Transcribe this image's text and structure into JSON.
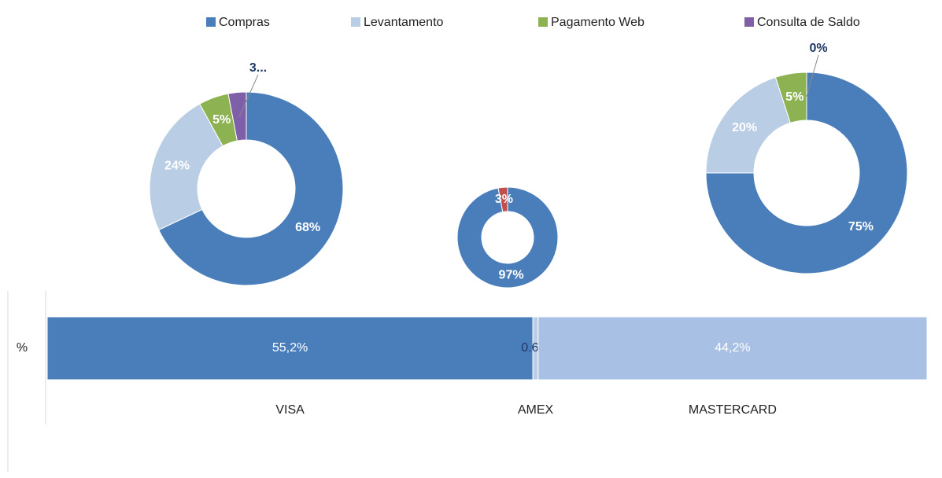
{
  "legend": [
    {
      "name": "Compras",
      "color": "#4a7ebb"
    },
    {
      "name": "Levantamento",
      "color": "#b9cde5"
    },
    {
      "name": "Pagamento Web",
      "color": "#8db252"
    },
    {
      "name": "Consulta de Saldo",
      "color": "#7f5fa8"
    }
  ],
  "chart_data": [
    {
      "type": "pie",
      "values": [
        68,
        24,
        5,
        3
      ],
      "value_labels": [
        "68%",
        "24%",
        "5%",
        "3..."
      ],
      "colors": [
        "#4a7ebb",
        "#b9cde5",
        "#8db252",
        "#7f5fa8"
      ]
    },
    {
      "type": "pie",
      "values": [
        97,
        3
      ],
      "value_labels": [
        "97%",
        "3%"
      ],
      "colors": [
        "#4a7ebb",
        "#c0504d"
      ]
    },
    {
      "type": "pie",
      "values": [
        75,
        20,
        5,
        0
      ],
      "value_labels": [
        "75%",
        "20%",
        "5%",
        "0%"
      ],
      "colors": [
        "#4a7ebb",
        "#b9cde5",
        "#8db252",
        "#7f5fa8"
      ]
    },
    {
      "type": "bar",
      "orientation": "horizontal",
      "stacked": true,
      "categories": [
        "%"
      ],
      "xlim": [
        0,
        100
      ],
      "series": [
        {
          "name": "VISA",
          "color": "#4a7ebb",
          "label_color": "#ffffff",
          "values": [
            55.2
          ],
          "value_labels": [
            "55,2%"
          ]
        },
        {
          "name": "AMEX",
          "color": "#b9cde5",
          "label_color": "#1f3864",
          "values": [
            0.6
          ],
          "value_labels": [
            "0.6%"
          ]
        },
        {
          "name": "MASTERCARD",
          "color": "#a7c0e4",
          "label_color": "#ffffff",
          "values": [
            44.2
          ],
          "value_labels": [
            "44,2%"
          ]
        }
      ]
    }
  ]
}
